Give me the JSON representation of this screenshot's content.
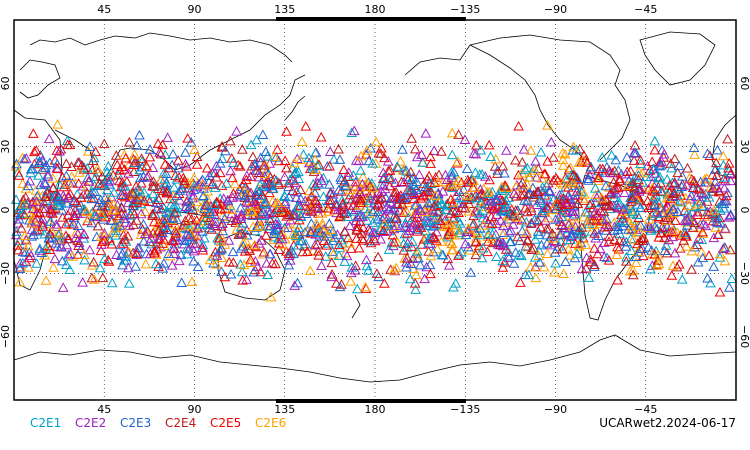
{
  "map": {
    "projection": "equirectangular",
    "lon_center": 180,
    "lat_range": [
      -90,
      90
    ],
    "grid": "dotted",
    "grid_lats": [
      60,
      30,
      0,
      -30,
      -60
    ],
    "grid_lons": [
      45,
      90,
      135,
      180,
      -135,
      -90,
      -45
    ],
    "lon_tick_labels": [
      "45",
      "90",
      "135",
      "180",
      "−135",
      "−90",
      "−45"
    ],
    "lat_tick_labels": [
      "60",
      "30",
      "0",
      "−30",
      "−60"
    ],
    "coastline_color": "#000000",
    "marker": "open-triangle",
    "data_lat_band": [
      -45,
      45
    ]
  },
  "legend": [
    {
      "label": "C2E1",
      "color": "#00a0c8"
    },
    {
      "label": "C2E2",
      "color": "#a020c0"
    },
    {
      "label": "C2E3",
      "color": "#1e64d2"
    },
    {
      "label": "C2E4",
      "color": "#c01818"
    },
    {
      "label": "C2E5",
      "color": "#f00000"
    },
    {
      "label": "C2E6",
      "color": "#ffa000"
    }
  ],
  "caption": "UCARwet2.2024-06-17"
}
